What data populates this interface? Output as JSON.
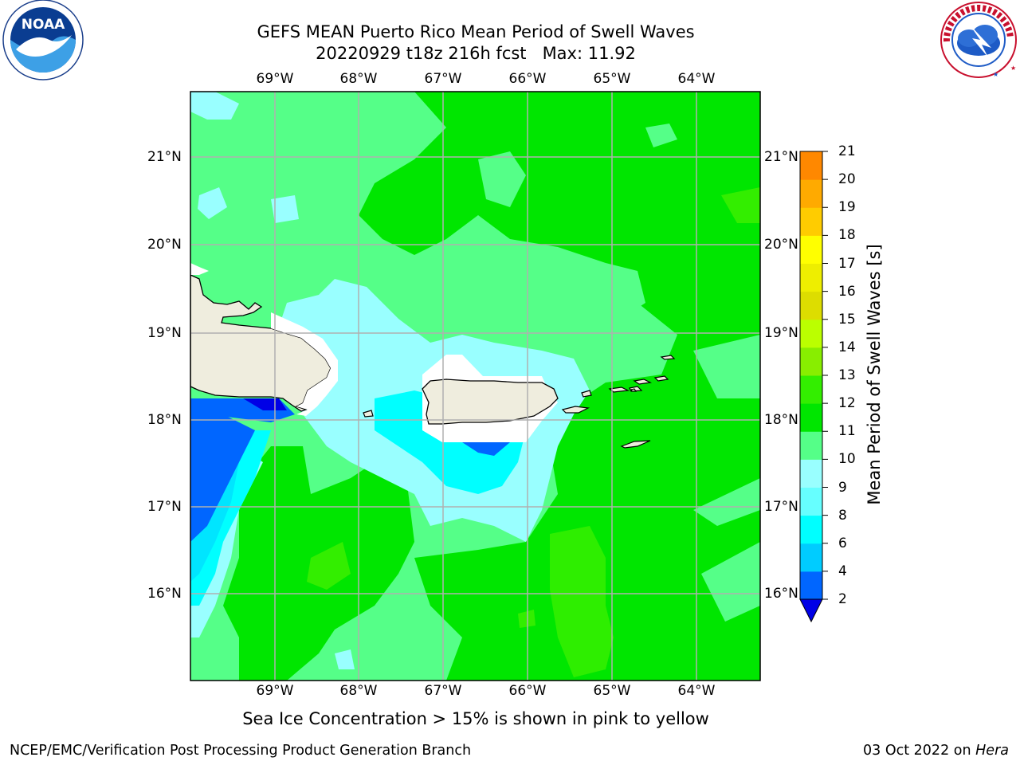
{
  "title": {
    "line1": "GEFS MEAN Puerto Rico Mean Period of Swell Waves",
    "line2": "20220929 t18z 216h fcst   Max: 11.92"
  },
  "logos": {
    "left": "NOAA",
    "left_ring_text": "NATIONAL OCEANIC AND ATMOSPHERIC ADMINISTRATION · U.S. DEPARTMENT OF COMMERCE",
    "right_ring_text": "NATIONAL WEATHER SERVICE"
  },
  "map": {
    "lon_ticks": [
      "69°W",
      "68°W",
      "67°W",
      "66°W",
      "65°W",
      "64°W"
    ],
    "lat_ticks": [
      "21°N",
      "20°N",
      "19°N",
      "18°N",
      "17°N",
      "16°N"
    ]
  },
  "colorbar": {
    "label": "Mean Period of Swell Waves [s]",
    "ticks": [
      "21",
      "20",
      "19",
      "18",
      "17",
      "16",
      "15",
      "14",
      "13",
      "12",
      "11",
      "10",
      "9",
      "8",
      "6",
      "4",
      "2"
    ],
    "colors": [
      "#0000e6",
      "#0066ff",
      "#00ccff",
      "#00ffff",
      "#66ffff",
      "#99ffff",
      "#55ff88",
      "#00e600",
      "#33ee00",
      "#88ee00",
      "#bbff00",
      "#dddd00",
      "#eeee00",
      "#ffff00",
      "#ffcc00",
      "#ffaa00",
      "#ff8800",
      "#ff5500",
      "#ff2200",
      "#ff0000"
    ]
  },
  "caption": "Sea Ice Concentration > 15% is shown in pink to yellow",
  "footer": {
    "left": "NCEP/EMC/Verification Post Processing Product Generation Branch",
    "right_prefix": "03 Oct 2022 on ",
    "right_machine": "Hera"
  },
  "colors": {
    "land": "#efedde",
    "ocean_high": "#00e600",
    "ocean_mid": "#55ff88",
    "ocean_low": "#99ffff",
    "ocean_cyan": "#00ffff",
    "ocean_blue": "#0066ff",
    "ocean_deep": "#0000e6"
  }
}
